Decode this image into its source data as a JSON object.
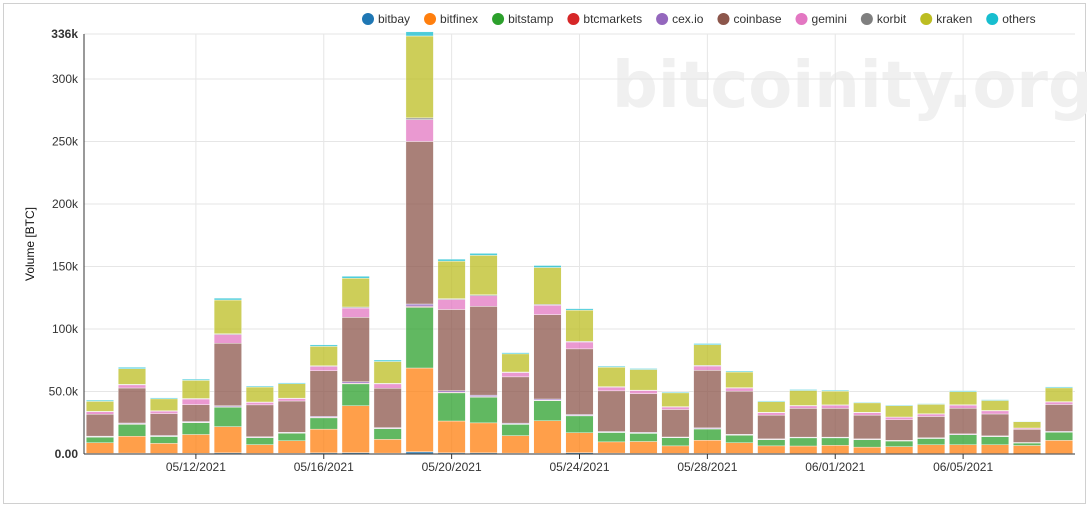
{
  "watermark": "bitcoinity.org",
  "chart_data": {
    "type": "bar",
    "stacked": true,
    "title": "",
    "ylabel": "Volume [BTC]",
    "xlabel": "",
    "ylim": [
      0,
      336000
    ],
    "y_ticks": [
      {
        "value": 0,
        "label": "0.00"
      },
      {
        "value": 50000,
        "label": "50.0k"
      },
      {
        "value": 100000,
        "label": "100k"
      },
      {
        "value": 150000,
        "label": "150k"
      },
      {
        "value": 200000,
        "label": "200k"
      },
      {
        "value": 250000,
        "label": "250k"
      },
      {
        "value": 300000,
        "label": "300k"
      },
      {
        "value": 336000,
        "label": "336k"
      }
    ],
    "x_ticks": [
      {
        "index": 3.5,
        "label": "05/12/2021"
      },
      {
        "index": 7.5,
        "label": "05/16/2021"
      },
      {
        "index": 11.5,
        "label": "05/20/2021"
      },
      {
        "index": 15.5,
        "label": "05/24/2021"
      },
      {
        "index": 19.5,
        "label": "05/28/2021"
      },
      {
        "index": 23.5,
        "label": "06/01/2021"
      },
      {
        "index": 27.5,
        "label": "06/05/2021"
      }
    ],
    "grid": true,
    "legend_position": "top-right",
    "categories": [
      "05/08/2021",
      "05/09/2021",
      "05/10/2021",
      "05/11/2021",
      "05/12/2021",
      "05/13/2021",
      "05/14/2021",
      "05/15/2021",
      "05/16/2021",
      "05/17/2021",
      "05/18/2021",
      "05/19/2021",
      "05/20/2021",
      "05/21/2021",
      "05/22/2021",
      "05/23/2021",
      "05/24/2021",
      "05/25/2021",
      "05/26/2021",
      "05/27/2021",
      "05/28/2021",
      "05/29/2021",
      "05/30/2021",
      "05/31/2021",
      "06/01/2021",
      "06/02/2021",
      "06/03/2021",
      "06/04/2021",
      "06/05/2021",
      "06/06/2021",
      "06/07/2021"
    ],
    "series": [
      {
        "name": "bitbay",
        "color": "#1f77b4",
        "values": [
          500,
          700,
          500,
          600,
          900,
          500,
          600,
          900,
          1100,
          700,
          1800,
          900,
          900,
          700,
          600,
          1000,
          700,
          500,
          500,
          500,
          500,
          500,
          400,
          400,
          500,
          400,
          400,
          400,
          400,
          300,
          400
        ]
      },
      {
        "name": "bitfinex",
        "color": "#ff7f0e",
        "values": [
          8500,
          13500,
          8000,
          15000,
          21000,
          7000,
          10000,
          19000,
          37500,
          11000,
          67000,
          25500,
          24000,
          14000,
          26000,
          16000,
          9000,
          9500,
          6000,
          10500,
          8500,
          6000,
          6000,
          6500,
          5000,
          5500,
          7000,
          7000,
          7000,
          6500,
          10500
        ]
      },
      {
        "name": "bitstamp",
        "color": "#2ca02c",
        "values": [
          4500,
          9500,
          5500,
          9500,
          15500,
          5500,
          6000,
          9000,
          17500,
          8500,
          48500,
          22500,
          20500,
          9000,
          16000,
          13500,
          7500,
          6500,
          6500,
          9000,
          6000,
          5000,
          6500,
          6000,
          6000,
          4500,
          5000,
          8000,
          6500,
          2000,
          6500
        ]
      },
      {
        "name": "btcmarkets",
        "color": "#d62728",
        "values": [
          300,
          400,
          300,
          300,
          400,
          300,
          300,
          400,
          500,
          300,
          700,
          500,
          500,
          300,
          400,
          300,
          300,
          300,
          200,
          300,
          300,
          200,
          200,
          200,
          200,
          200,
          200,
          200,
          200,
          100,
          200
        ]
      },
      {
        "name": "cex.io",
        "color": "#9467bd",
        "values": [
          500,
          700,
          500,
          600,
          800,
          500,
          500,
          800,
          1200,
          600,
          2000,
          1200,
          1200,
          700,
          1000,
          800,
          500,
          500,
          400,
          600,
          500,
          400,
          400,
          400,
          400,
          300,
          400,
          500,
          400,
          300,
          500
        ]
      },
      {
        "name": "coinbase",
        "color": "#8c564b",
        "values": [
          17500,
          28000,
          17500,
          13500,
          50000,
          25500,
          25000,
          36500,
          51500,
          31500,
          130000,
          65000,
          71000,
          37000,
          67500,
          52500,
          32500,
          31000,
          22000,
          46000,
          34500,
          19000,
          23000,
          23000,
          19000,
          16500,
          17000,
          20500,
          17500,
          10500,
          21500
        ]
      },
      {
        "name": "gemini",
        "color": "#e377c2",
        "values": [
          2000,
          2500,
          2000,
          4500,
          7000,
          2000,
          2000,
          3500,
          7500,
          3500,
          17500,
          8000,
          8500,
          3500,
          7500,
          5500,
          3000,
          2500,
          2000,
          3500,
          2500,
          2000,
          2000,
          2500,
          2000,
          2000,
          2000,
          2500,
          2500,
          1000,
          2000
        ]
      },
      {
        "name": "korbit",
        "color": "#7f7f7f",
        "values": [
          300,
          400,
          300,
          400,
          600,
          300,
          300,
          500,
          800,
          400,
          1400,
          700,
          800,
          400,
          700,
          500,
          400,
          300,
          300,
          500,
          300,
          300,
          300,
          300,
          300,
          200,
          200,
          300,
          300,
          100,
          300
        ]
      },
      {
        "name": "kraken",
        "color": "#bcbd22",
        "values": [
          8000,
          12500,
          9500,
          14500,
          27000,
          12000,
          11500,
          15500,
          23000,
          17500,
          65500,
          30000,
          31500,
          14500,
          29500,
          25000,
          15500,
          16500,
          11000,
          16500,
          12500,
          8500,
          12000,
          11000,
          7500,
          9000,
          7500,
          10500,
          8000,
          5000,
          11000
        ]
      },
      {
        "name": "others",
        "color": "#17becf",
        "values": [
          1000,
          1200,
          800,
          1000,
          1500,
          800,
          800,
          1200,
          1600,
          1200,
          3400,
          1600,
          1600,
          1000,
          1600,
          1200,
          800,
          800,
          700,
          1000,
          800,
          600,
          800,
          700,
          600,
          600,
          600,
          800,
          700,
          400,
          800
        ]
      }
    ]
  }
}
